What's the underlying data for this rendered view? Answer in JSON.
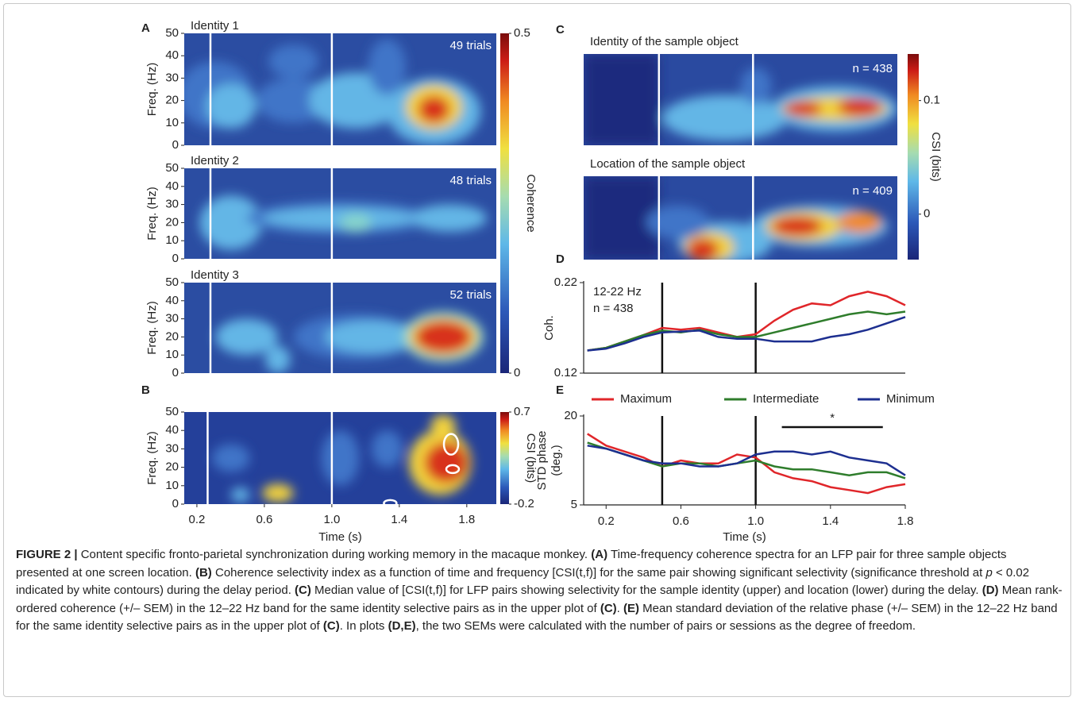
{
  "figure": {
    "panel_labels": [
      "A",
      "B",
      "C",
      "D",
      "E"
    ],
    "panel_a": {
      "ylabel": "Freq. (Hz)",
      "ylim": [
        0,
        50
      ],
      "yticks": [
        0,
        10,
        20,
        30,
        40,
        50
      ],
      "maps": [
        {
          "title": "Identity 1",
          "count": "49 trials"
        },
        {
          "title": "Identity 2",
          "count": "48 trials"
        },
        {
          "title": "Identity 3",
          "count": "52 trials"
        }
      ],
      "colorbar": {
        "label": "Coherence",
        "lim": [
          0,
          0.5
        ],
        "ticks": [
          0,
          0.5
        ]
      }
    },
    "panel_b": {
      "ylabel": "Freq. (Hz)",
      "ylim": [
        0,
        50
      ],
      "yticks": [
        0,
        10,
        20,
        30,
        40,
        50
      ],
      "xlabel": "Time (s)",
      "xlim": [
        0.125,
        1.975
      ],
      "xticks": [
        0.2,
        0.6,
        {
          "value": 1,
          "label": "1.0"
        },
        1.4,
        1.8
      ],
      "colorbar": {
        "label": "CSI (bits)",
        "lim": [
          -0.2,
          0.7
        ],
        "ticks": [
          -0.2,
          0.7
        ]
      }
    },
    "panel_c": {
      "maps": [
        {
          "title": "Identity of the sample object",
          "count": "n = 438"
        },
        {
          "title": "Location of the sample object",
          "count": "n = 409"
        }
      ],
      "colorbar": {
        "label": "CSI (bits)",
        "lim": [
          -0.04,
          0.141
        ],
        "ticks": [
          0,
          0.1
        ]
      }
    }
  },
  "chart_data": [
    {
      "type": "line",
      "ylabel": "Coh.",
      "ylim": [
        0.12,
        0.22
      ],
      "yticks": [
        0.12,
        0.22
      ],
      "xlim": [
        0.08,
        1.8
      ],
      "annotations": [
        "12-22 Hz",
        "n = 438"
      ],
      "events": [
        0.5,
        1
      ],
      "x": [
        0.1,
        0.2,
        0.3,
        0.4,
        0.5,
        0.6,
        0.7,
        0.8,
        0.9,
        1.0,
        1.1,
        1.2,
        1.3,
        1.4,
        1.5,
        1.6,
        1.7,
        1.8
      ],
      "series": [
        {
          "name": "Maximum",
          "color": "#e0262a",
          "values": [
            0.145,
            0.148,
            0.155,
            0.162,
            0.17,
            0.168,
            0.17,
            0.165,
            0.16,
            0.163,
            0.178,
            0.19,
            0.197,
            0.195,
            0.205,
            0.21,
            0.205,
            0.195
          ]
        },
        {
          "name": "Intermediate",
          "color": "#2f7d2c",
          "values": [
            0.145,
            0.148,
            0.155,
            0.162,
            0.167,
            0.165,
            0.168,
            0.163,
            0.16,
            0.16,
            0.165,
            0.17,
            0.175,
            0.18,
            0.185,
            0.188,
            0.185,
            0.188
          ]
        },
        {
          "name": "Minimum",
          "color": "#1d2f90",
          "values": [
            0.145,
            0.147,
            0.153,
            0.16,
            0.165,
            0.166,
            0.167,
            0.16,
            0.158,
            0.158,
            0.155,
            0.155,
            0.155,
            0.16,
            0.163,
            0.168,
            0.175,
            0.182
          ]
        }
      ]
    },
    {
      "type": "line",
      "ylabel": [
        "STD phase",
        "(deg.)"
      ],
      "ylim": [
        5,
        20
      ],
      "yticks": [
        5,
        20
      ],
      "xlim": [
        0.08,
        1.8
      ],
      "xlabel": "Time (s)",
      "xticks": [
        0.2,
        0.6,
        {
          "value": 1,
          "label": "1.0"
        },
        1.4,
        1.8
      ],
      "events": [
        0.5,
        1
      ],
      "legend": "top",
      "significance": {
        "label": "*",
        "x": [
          1.14,
          1.68
        ]
      },
      "x": [
        0.1,
        0.2,
        0.3,
        0.4,
        0.5,
        0.6,
        0.7,
        0.8,
        0.9,
        1.0,
        1.1,
        1.2,
        1.3,
        1.4,
        1.5,
        1.6,
        1.7,
        1.8
      ],
      "series": [
        {
          "name": "Maximum",
          "color": "#e0262a",
          "values": [
            17,
            15,
            14,
            13,
            11.5,
            12.5,
            12,
            12,
            13.5,
            13,
            10.5,
            9.5,
            9,
            8,
            7.5,
            7,
            8,
            8.5
          ]
        },
        {
          "name": "Intermediate",
          "color": "#2f7d2c",
          "values": [
            15.5,
            14.5,
            13.5,
            12.5,
            11.5,
            12,
            12,
            11.5,
            12,
            12.5,
            11.5,
            11,
            11,
            10.5,
            10,
            10.5,
            10.5,
            9.5
          ]
        },
        {
          "name": "Minimum",
          "color": "#1d2f90",
          "values": [
            15,
            14.5,
            13.5,
            12.5,
            12,
            12,
            11.5,
            11.5,
            12,
            13.5,
            14,
            14,
            13.5,
            14,
            13,
            12.5,
            12,
            10
          ]
        }
      ]
    }
  ],
  "caption": {
    "parts": [
      "FIGURE 2 |",
      " Content specific fronto-parietal synchronization during working memory in the macaque monkey. ",
      "(A)",
      " Time-frequency coherence spectra for an LFP pair for three sample objects presented at one screen location. ",
      "(B)",
      " Coherence selectivity index as a function of time and frequency [CSI(t,f)] for the same pair showing significant selectivity (significance threshold at ",
      "p",
      " < 0.02 indicated by white contours) during the delay period. ",
      "(C)",
      " Median value of [CSI(t,f)] for LFP pairs showing selectivity for the sample identity (upper) and location (lower) during the delay. ",
      "(D)",
      " Mean rank-ordered coherence (+/– SEM) in the 12–22 Hz band for the same identity selective pairs as in the upper plot of ",
      "(C)",
      ". ",
      "(E)",
      " Mean standard deviation of the relative phase (+/– SEM) in the 12–22 Hz band for the same identity selective pairs as in the upper plot of ",
      "(C)",
      ". In plots ",
      "(D,E)",
      ", the two SEMs were calculated with the number of pairs or sessions as the degree of freedom."
    ]
  }
}
